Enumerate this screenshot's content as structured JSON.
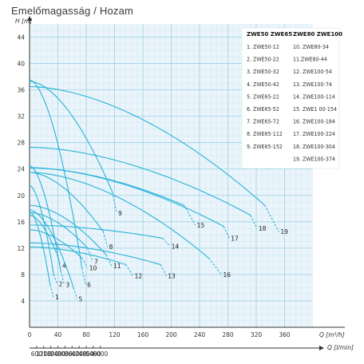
{
  "title": "Emelőmagasság / Hozam",
  "chart_data": {
    "type": "line",
    "title": "Emelőmagasság / Hozam",
    "ylabel": "H [m]",
    "xlabel": "Q [m³/h]",
    "x2label": "Q [l/min]",
    "xlim": [
      0,
      400
    ],
    "ylim": [
      0,
      46
    ],
    "x_ticks": [
      0,
      40,
      80,
      120,
      160,
      200,
      240,
      280,
      320,
      360
    ],
    "y_ticks": [
      4,
      8,
      12,
      16,
      20,
      24,
      28,
      32,
      36,
      40,
      44
    ],
    "x2_ticks": [
      600,
      1200,
      1800,
      2400,
      3000,
      3600,
      4200,
      4800,
      5400,
      6000
    ],
    "grid": true,
    "legend_headers": [
      "ZWE50 ZWE65",
      "ZWE80 ZWE100"
    ],
    "legend_left": [
      "1. ZWE50-12",
      "2. ZWE50-22",
      "3. ZWE50-32",
      "4. ZWE50-42",
      "5. ZWE65-22",
      "6. ZWE65-52",
      "7. ZWE65-72",
      "8. ZWE65-112",
      "9. ZWE65-152"
    ],
    "legend_right": [
      "10. ZWE80-34",
      "11.ZWE80-44",
      "12. ZWE100-54",
      "13. ZWE100-74",
      "14. ZWE100-114",
      "15. ZWE1 00-154",
      "16. ZWE100-184",
      "17. ZWE100-224",
      "18. ZWE100-304",
      "19. ZWE100-374"
    ],
    "series": [
      {
        "name": "1",
        "shutoff": 17.5,
        "end": [
          29,
          6.4
        ],
        "dashed_to": [
          34,
          4.6
        ]
      },
      {
        "name": "2",
        "shutoff": 21.5,
        "end": [
          34,
          8.0
        ],
        "dashed_to": [
          39,
          6.6
        ]
      },
      {
        "name": "3",
        "shutoff": 24.5,
        "end": [
          44,
          8.5
        ],
        "dashed_to": [
          49,
          6.5
        ]
      },
      {
        "name": "4",
        "shutoff": 17.0,
        "end": [
          37,
          11.5
        ],
        "dashed_to": [
          44,
          9.4
        ]
      },
      {
        "name": "5",
        "shutoff": 17.8,
        "end": [
          62,
          6.0
        ],
        "dashed_to": [
          67,
          4.3
        ]
      },
      {
        "name": "6",
        "shutoff": 37.5,
        "end": [
          74,
          9.0
        ],
        "dashed_to": [
          79,
          6.5
        ]
      },
      {
        "name": "7",
        "shutoff": 17.4,
        "end": [
          82,
          12.0
        ],
        "dashed_to": [
          89,
          10.0
        ]
      },
      {
        "name": "8",
        "shutoff": 23.5,
        "end": [
          104,
          14.5
        ],
        "dashed_to": [
          110,
          12.2
        ]
      },
      {
        "name": "9",
        "shutoff": 37.3,
        "end": [
          117,
          20.5
        ],
        "dashed_to": [
          123,
          17.3
        ]
      },
      {
        "name": "10",
        "shutoff": 14.8,
        "end": [
          74,
          10.5
        ],
        "dashed_to": [
          82,
          9.0
        ]
      },
      {
        "name": "11",
        "shutoff": 18.5,
        "end": [
          108,
          11.0
        ],
        "dashed_to": [
          116,
          9.3
        ]
      },
      {
        "name": "12",
        "shutoff": 12.2,
        "end": [
          136,
          9.5
        ],
        "dashed_to": [
          146,
          7.8
        ]
      },
      {
        "name": "13",
        "shutoff": 12.8,
        "end": [
          185,
          9.5
        ],
        "dashed_to": [
          193,
          7.8
        ]
      },
      {
        "name": "14",
        "shutoff": 15.5,
        "end": [
          188,
          13.5
        ],
        "dashed_to": [
          198,
          12.3
        ]
      },
      {
        "name": "15",
        "shutoff": 24.2,
        "end": [
          218,
          18.5
        ],
        "dashed_to": [
          234,
          15.5
        ]
      },
      {
        "name": "16",
        "shutoff": 23.5,
        "end": [
          253,
          10.5
        ],
        "dashed_to": [
          271,
          8.0
        ]
      },
      {
        "name": "17",
        "shutoff": 24.2,
        "end": [
          274,
          15.3
        ],
        "dashed_to": [
          282,
          13.5
        ]
      },
      {
        "name": "18",
        "shutoff": 27.3,
        "end": [
          312,
          17.0
        ],
        "dashed_to": [
          321,
          15.0
        ]
      },
      {
        "name": "19",
        "shutoff": 36.5,
        "end": [
          332,
          18.5
        ],
        "dashed_to": [
          352,
          14.5
        ]
      }
    ]
  },
  "colors": {
    "curve": "#29b3d8",
    "grid_major": "#9fd3e8",
    "grid_minor": "#cfe8f2",
    "plot_bg": "#eaf4fa",
    "axis": "#333333"
  }
}
